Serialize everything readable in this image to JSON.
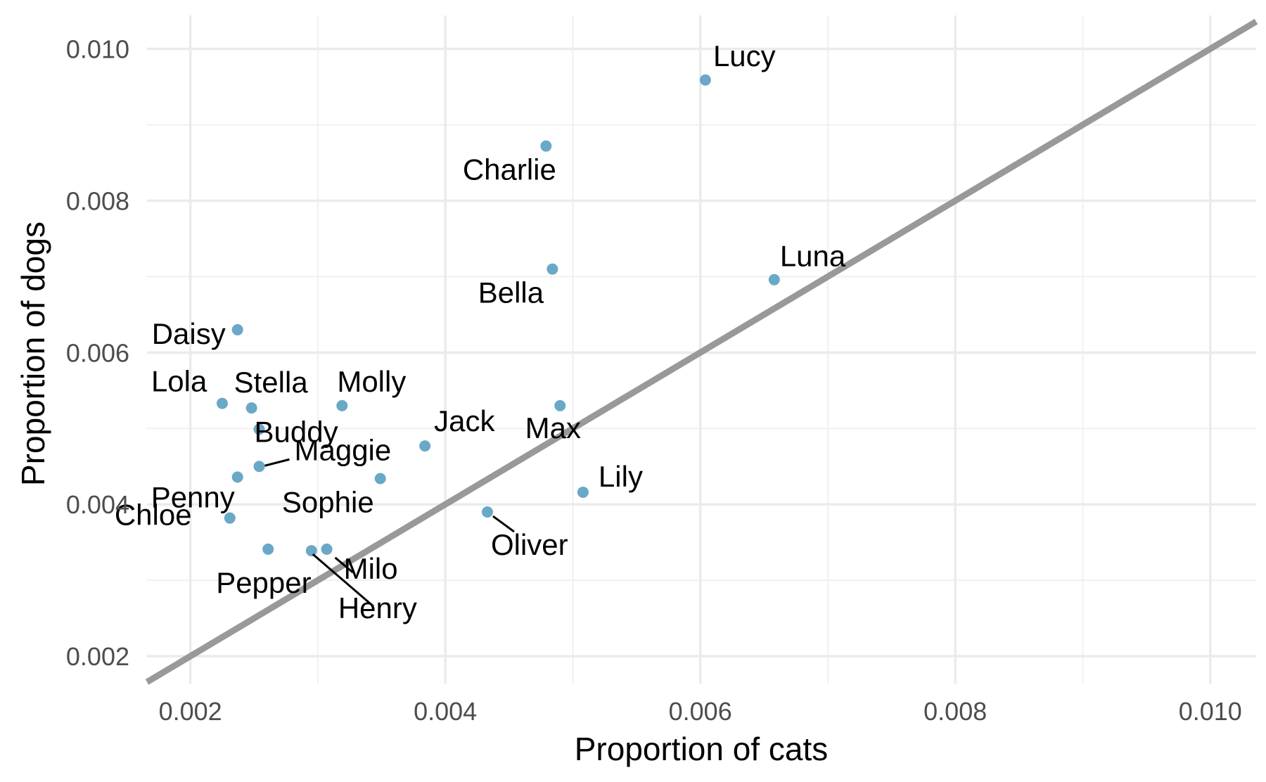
{
  "chart_data": {
    "type": "scatter",
    "title": "",
    "xlabel": "Proportion of cats",
    "ylabel": "Proportion of dogs",
    "xlim": [
      0.00166,
      0.01036
    ],
    "ylim": [
      0.00164,
      0.01044
    ],
    "x_ticks": [
      "0.002",
      "0.004",
      "0.006",
      "0.008",
      "0.010"
    ],
    "y_ticks": [
      "0.002",
      "0.004",
      "0.006",
      "0.008",
      "0.010"
    ],
    "x_tick_values": [
      0.002,
      0.004,
      0.006,
      0.008,
      0.01
    ],
    "y_tick_values": [
      0.002,
      0.004,
      0.006,
      0.008,
      0.01
    ],
    "grid": true,
    "reference_line": {
      "slope": 1,
      "intercept": 0,
      "color": "#999999"
    },
    "point_color": "#6aa8c8",
    "points": [
      {
        "name": "Lucy",
        "x": 0.00604,
        "y": 0.00959
      },
      {
        "name": "Charlie",
        "x": 0.00479,
        "y": 0.00872
      },
      {
        "name": "Luna",
        "x": 0.00658,
        "y": 0.00696
      },
      {
        "name": "Bella",
        "x": 0.00484,
        "y": 0.0071
      },
      {
        "name": "Daisy",
        "x": 0.00237,
        "y": 0.0063
      },
      {
        "name": "Lola",
        "x": 0.00225,
        "y": 0.00533
      },
      {
        "name": "Stella",
        "x": 0.00248,
        "y": 0.00527
      },
      {
        "name": "Molly",
        "x": 0.00319,
        "y": 0.0053
      },
      {
        "name": "Max",
        "x": 0.0049,
        "y": 0.0053
      },
      {
        "name": "Buddy",
        "x": 0.00254,
        "y": 0.00499
      },
      {
        "name": "Jack",
        "x": 0.00384,
        "y": 0.00477
      },
      {
        "name": "Maggie",
        "x": 0.00254,
        "y": 0.0045
      },
      {
        "name": "Lily",
        "x": 0.00508,
        "y": 0.00416
      },
      {
        "name": "Sophie",
        "x": 0.00349,
        "y": 0.00434
      },
      {
        "name": "Penny",
        "x": 0.00237,
        "y": 0.00436
      },
      {
        "name": "Oliver",
        "x": 0.00433,
        "y": 0.0039
      },
      {
        "name": "Chloe",
        "x": 0.00231,
        "y": 0.00382
      },
      {
        "name": "Pepper",
        "x": 0.00261,
        "y": 0.00341
      },
      {
        "name": "Milo",
        "x": 0.00307,
        "y": 0.00341
      },
      {
        "name": "Henry",
        "x": 0.00295,
        "y": 0.00339
      }
    ]
  }
}
